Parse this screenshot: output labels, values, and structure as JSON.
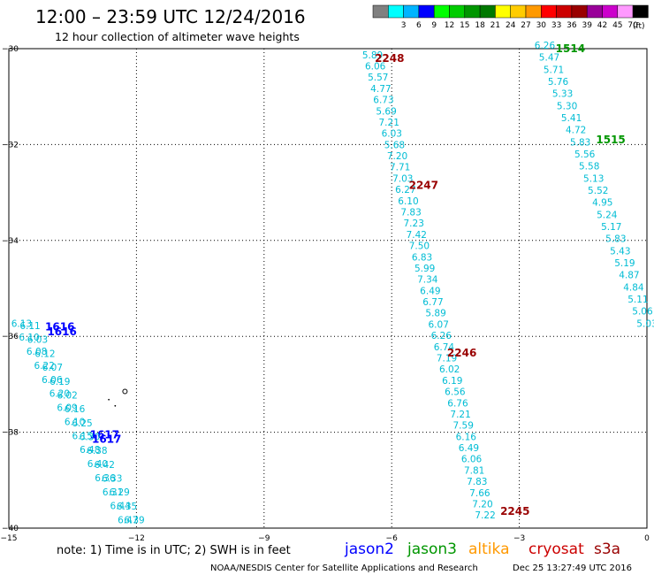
{
  "header": {
    "title": "12:00 – 23:59 UTC 12/24/2016",
    "subtitle": "12 hour collection of altimeter wave heights"
  },
  "legend": {
    "unit": "(ft)",
    "bins": [
      {
        "color": "#808080",
        "label": ""
      },
      {
        "color": "#00ffff",
        "label": "3"
      },
      {
        "color": "#00b4ff",
        "label": "6"
      },
      {
        "color": "#0000ff",
        "label": "9"
      },
      {
        "color": "#00ff00",
        "label": "12"
      },
      {
        "color": "#00cc00",
        "label": "15"
      },
      {
        "color": "#009600",
        "label": "18"
      },
      {
        "color": "#007800",
        "label": "21"
      },
      {
        "color": "#ffff00",
        "label": "24"
      },
      {
        "color": "#ffcc00",
        "label": "27"
      },
      {
        "color": "#ff9900",
        "label": "30"
      },
      {
        "color": "#ff0000",
        "label": "33"
      },
      {
        "color": "#cc0000",
        "label": "36"
      },
      {
        "color": "#990000",
        "label": "39"
      },
      {
        "color": "#990099",
        "label": "42"
      },
      {
        "color": "#cc00cc",
        "label": "45"
      },
      {
        "color": "#ff99ff",
        "label": "70"
      },
      {
        "color": "#000000",
        "label": ""
      }
    ]
  },
  "footer": {
    "note": "note:  1) Time is in UTC;  2) SWH is in feet",
    "satellites": [
      {
        "name": "jason2",
        "color": "#0000ff"
      },
      {
        "name": "jason3",
        "color": "#009600"
      },
      {
        "name": "altika",
        "color": "#ff9900"
      },
      {
        "name": "cryosat",
        "color": "#cc0000"
      },
      {
        "name": "s3a",
        "color": "#990000"
      }
    ],
    "credit": "NOAA/NESDIS Center for Satellite Applications and Research",
    "timestamp": "Dec 25 13:27:49 UTC 2016"
  },
  "chart_data": {
    "type": "scatter",
    "xlim": [
      -15,
      0
    ],
    "ylim": [
      -40,
      -30
    ],
    "xticks": [
      -15,
      -12,
      -9,
      -6,
      -3,
      0
    ],
    "yticks": [
      -30,
      -32,
      -34,
      -36,
      -38,
      -40
    ],
    "xtick_labels": [
      "−15",
      "−12",
      "−9",
      "−6",
      "−3",
      "0"
    ],
    "ytick_labels": [
      "−30",
      "−32",
      "−34",
      "−36",
      "−38",
      "−40"
    ],
    "grid": true,
    "value_color": "#00bcd4",
    "tracks": [
      {
        "satellite": "s3a",
        "start": [
          -6.45,
          -30.2
        ],
        "end": [
          -3.8,
          -39.8
        ],
        "values": [
          "5.89",
          "6.06",
          "5.57",
          "4.77",
          "6.73",
          "5.69",
          "7.21",
          "6.03",
          "5.68",
          "7.20",
          "7.71",
          "7.03",
          "6.27",
          "6.10",
          "7.83",
          "7.23",
          "7.42",
          "7.50",
          "6.83",
          "5.99",
          "7.34",
          "6.49",
          "6.77",
          "5.89",
          "6.07",
          "6.26",
          "6.74",
          "7.19",
          "6.02",
          "6.19",
          "6.56",
          "6.76",
          "7.21",
          "7.59",
          "6.16",
          "6.49",
          "6.06",
          "7.81",
          "7.83",
          "7.66",
          "7.20",
          "7.22"
        ],
        "time_labels": [
          {
            "text": "2248",
            "pos": [
              -6.05,
              -30.2
            ]
          },
          {
            "text": "2247",
            "pos": [
              -5.25,
              -32.85
            ]
          },
          {
            "text": "2246",
            "pos": [
              -4.35,
              -36.35
            ]
          },
          {
            "text": "2245",
            "pos": [
              -3.1,
              -39.65
            ]
          }
        ]
      },
      {
        "satellite": "jason3",
        "start": [
          -2.4,
          -30.0
        ],
        "end": [
          0.0,
          -35.8
        ],
        "values": [
          "6.26",
          "5.47",
          "5.71",
          "5.76",
          "5.33",
          "5.30",
          "5.41",
          "4.72",
          "5.83",
          "5.56",
          "5.58",
          "5.13",
          "5.52",
          "4.95",
          "5.24",
          "5.17",
          "5.83",
          "5.43",
          "5.19",
          "4.87",
          "4.84",
          "5.11",
          "5.06",
          "5.03"
        ],
        "time_labels": [
          {
            "text": "1514",
            "pos": [
              -1.8,
              -30.0
            ]
          },
          {
            "text": "1515",
            "pos": [
              -0.85,
              -31.9
            ]
          }
        ]
      },
      {
        "satellite": "jason2",
        "start": [
          -14.7,
          -35.8
        ],
        "end": [
          -12.2,
          -39.9
        ],
        "values": [
          "6.13",
          "6.10",
          "6.08",
          "6.22",
          "6.06",
          "6.20",
          "6.09",
          "6.10",
          "6.15",
          "6.48",
          "6.40",
          "6.36",
          "6.31",
          "6.44",
          "6.47"
        ],
        "time_labels": [
          {
            "text": "1616",
            "pos": [
              -13.8,
              -35.8
            ]
          },
          {
            "text": "1617",
            "pos": [
              -12.75,
              -38.05
            ]
          }
        ]
      },
      {
        "satellite": "jason2",
        "start": [
          -14.5,
          -35.85
        ],
        "end": [
          -12.05,
          -39.9
        ],
        "values": [
          "6.11",
          "6.03",
          "6.12",
          "6.07",
          "6.19",
          "6.02",
          "6.16",
          "6.25",
          "6.30",
          "6.38",
          "6.42",
          "6.33",
          "6.29",
          "6.35",
          "6.39"
        ],
        "time_labels": [
          {
            "text": "1616",
            "pos": [
              -13.75,
              -35.9
            ]
          },
          {
            "text": "1617",
            "pos": [
              -12.7,
              -38.15
            ]
          }
        ]
      }
    ],
    "islands": [
      {
        "pos": [
          -12.27,
          -37.15
        ],
        "shape": "ring"
      },
      {
        "pos": [
          -12.65,
          -37.32
        ],
        "shape": "dot"
      },
      {
        "pos": [
          -12.5,
          -37.45
        ],
        "shape": "dot"
      }
    ]
  }
}
